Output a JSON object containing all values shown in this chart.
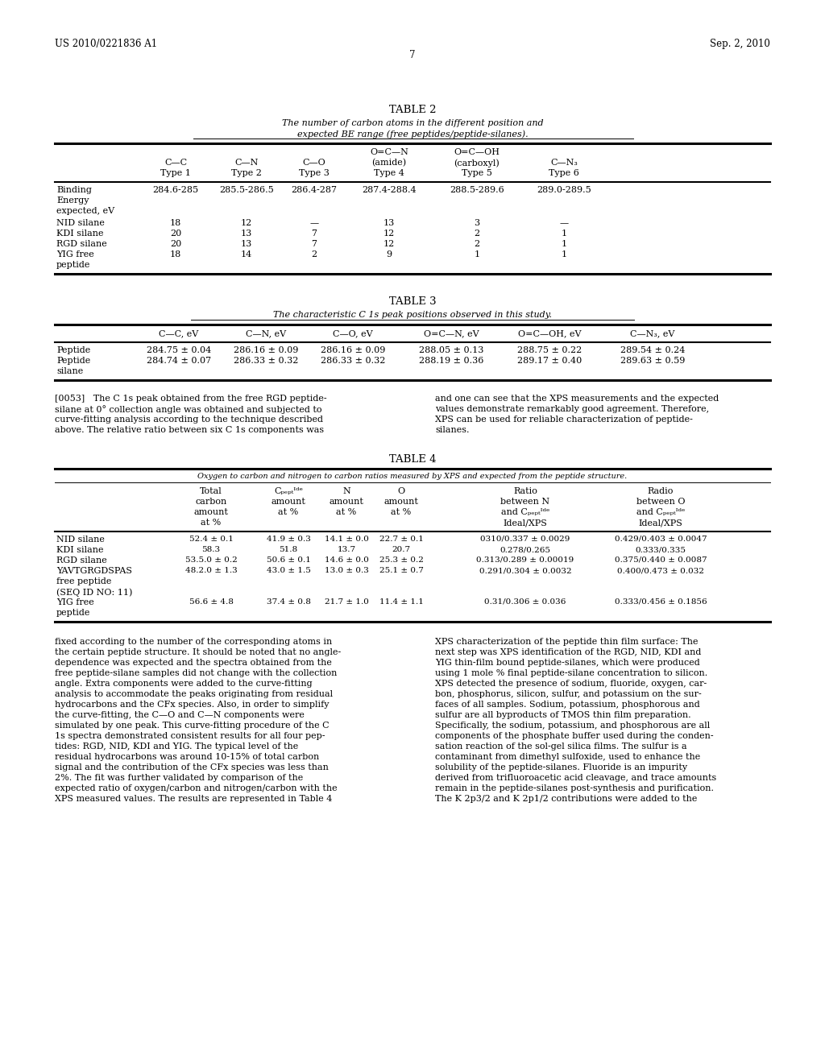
{
  "bg_color": "#ffffff",
  "header_left": "US 2010/0221836 A1",
  "header_right": "Sep. 2, 2010",
  "page_number": "7",
  "table2_title": "TABLE 2",
  "table2_subtitle1": "The number of carbon atoms in the different position and",
  "table2_subtitle2": "expected BE range (free peptides/peptide-silanes).",
  "table3_title": "TABLE 3",
  "table3_subtitle": "The characteristic C 1s peak positions observed in this study.",
  "para_left1": "[0053]   The C 1s peak obtained from the free RGD peptide-",
  "para_left2": "silane at 0° collection angle was obtained and subjected to",
  "para_left3": "curve-fitting analysis according to the technique described",
  "para_left4": "above. The relative ratio between six C 1s components was",
  "para_right1": "and one can see that the XPS measurements and the expected",
  "para_right2": "values demonstrate remarkably good agreement. Therefore,",
  "para_right3": "XPS can be used for reliable characterization of peptide-",
  "para_right4": "silanes.",
  "table4_title": "TABLE 4",
  "table4_subtitle": "Oxygen to carbon and nitrogen to carbon ratios measured by XPS and expected from the peptide structure.",
  "footer_left": [
    "fixed according to the number of the corresponding atoms in",
    "the certain peptide structure. It should be noted that no angle-",
    "dependence was expected and the spectra obtained from the",
    "free peptide-silane samples did not change with the collection",
    "angle. Extra components were added to the curve-fitting",
    "analysis to accommodate the peaks originating from residual",
    "hydrocarbons and the CFx species. Also, in order to simplify",
    "the curve-fitting, the C—O and C—N components were",
    "simulated by one peak. This curve-fitting procedure of the C",
    "1s spectra demonstrated consistent results for all four pep-",
    "tides: RGD, NID, KDI and YIG. The typical level of the",
    "residual hydrocarbons was around 10-15% of total carbon",
    "signal and the contribution of the CFx species was less than",
    "2%. The fit was further validated by comparison of the",
    "expected ratio of oxygen/carbon and nitrogen/carbon with the",
    "XPS measured values. The results are represented in Table 4"
  ],
  "footer_right": [
    "XPS characterization of the peptide thin film surface: The",
    "next step was XPS identification of the RGD, NID, KDI and",
    "YIG thin-film bound peptide-silanes, which were produced",
    "using 1 mole % final peptide-silane concentration to silicon.",
    "XPS detected the presence of sodium, fluoride, oxygen, car-",
    "bon, phosphorus, silicon, sulfur, and potassium on the sur-",
    "faces of all samples. Sodium, potassium, phosphorous and",
    "sulfur are all byproducts of TMOS thin film preparation.",
    "Specifically, the sodium, potassium, and phosphorous are all",
    "components of the phosphate buffer used during the conden-",
    "sation reaction of the sol-gel silica films. The sulfur is a",
    "contaminant from dimethyl sulfoxide, used to enhance the",
    "solubility of the peptide-silanes. Fluoride is an impurity",
    "derived from trifluoroacetic acid cleavage, and trace amounts",
    "remain in the peptide-silanes post-synthesis and purification.",
    "The K 2p3/2 and K 2p1/2 contributions were added to the"
  ]
}
